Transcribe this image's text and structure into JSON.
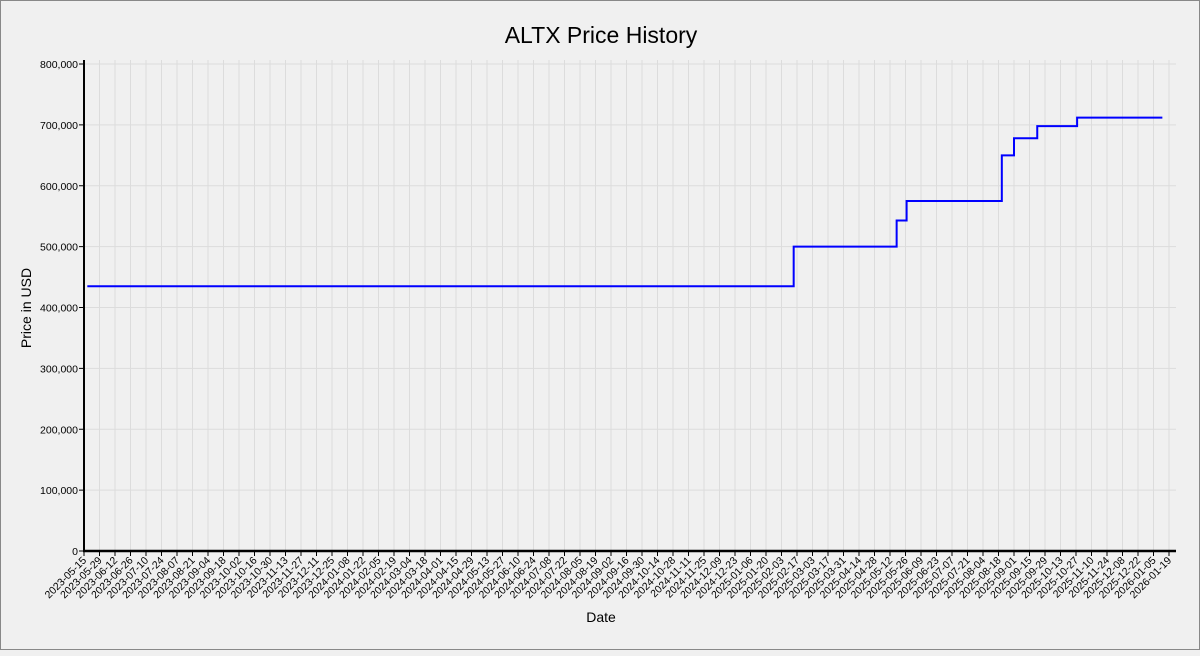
{
  "chart_data": {
    "type": "line",
    "title": "ALTX Price History",
    "xlabel": "Date",
    "ylabel": "Price in USD",
    "ylim": [
      0,
      800000
    ],
    "xlim": [
      "2023-05-15",
      "2026-01-19"
    ],
    "grid": true,
    "line_style": "step-after",
    "y_ticks": [
      0,
      100000,
      200000,
      300000,
      400000,
      500000,
      600000,
      700000,
      800000
    ],
    "y_tick_labels": [
      "0",
      "100,000",
      "200,000",
      "300,000",
      "400,000",
      "500,000",
      "600,000",
      "700,000",
      "800,000"
    ],
    "x_tick_labels": [
      "2023-05-15",
      "2023-05-29",
      "2023-06-12",
      "2023-06-26",
      "2023-07-10",
      "2023-07-24",
      "2023-08-07",
      "2023-08-21",
      "2023-09-04",
      "2023-09-18",
      "2023-10-02",
      "2023-10-16",
      "2023-10-30",
      "2023-11-13",
      "2023-11-27",
      "2023-12-11",
      "2023-12-25",
      "2024-01-08",
      "2024-01-22",
      "2024-02-05",
      "2024-02-19",
      "2024-03-04",
      "2024-03-18",
      "2024-04-01",
      "2024-04-15",
      "2024-04-29",
      "2024-05-13",
      "2024-05-27",
      "2024-06-10",
      "2024-06-24",
      "2024-07-08",
      "2024-07-22",
      "2024-08-05",
      "2024-08-19",
      "2024-09-02",
      "2024-09-16",
      "2024-09-30",
      "2024-10-14",
      "2024-10-28",
      "2024-11-11",
      "2024-11-25",
      "2024-12-09",
      "2024-12-23",
      "2025-01-06",
      "2025-01-20",
      "2025-02-03",
      "2025-02-17",
      "2025-03-03",
      "2025-03-17",
      "2025-03-31",
      "2025-04-14",
      "2025-04-28",
      "2025-05-12",
      "2025-05-26",
      "2025-06-09",
      "2025-06-23",
      "2025-07-07",
      "2025-07-21",
      "2025-08-04",
      "2025-08-18",
      "2025-09-01",
      "2025-09-15",
      "2025-09-29",
      "2025-10-13",
      "2025-10-27",
      "2025-11-10",
      "2025-11-24",
      "2025-12-08",
      "2025-12-22",
      "2026-01-05",
      "2026-01-19"
    ],
    "series": [
      {
        "color": "#0000ff",
        "x": [
          "2023-05-18",
          "2025-02-14",
          "2025-05-18",
          "2025-05-27",
          "2025-08-21",
          "2025-09-01",
          "2025-09-22",
          "2025-10-28",
          "2026-01-13"
        ],
        "y": [
          435000,
          500000,
          543000,
          575000,
          650000,
          678000,
          698000,
          712000,
          712000
        ]
      }
    ]
  }
}
